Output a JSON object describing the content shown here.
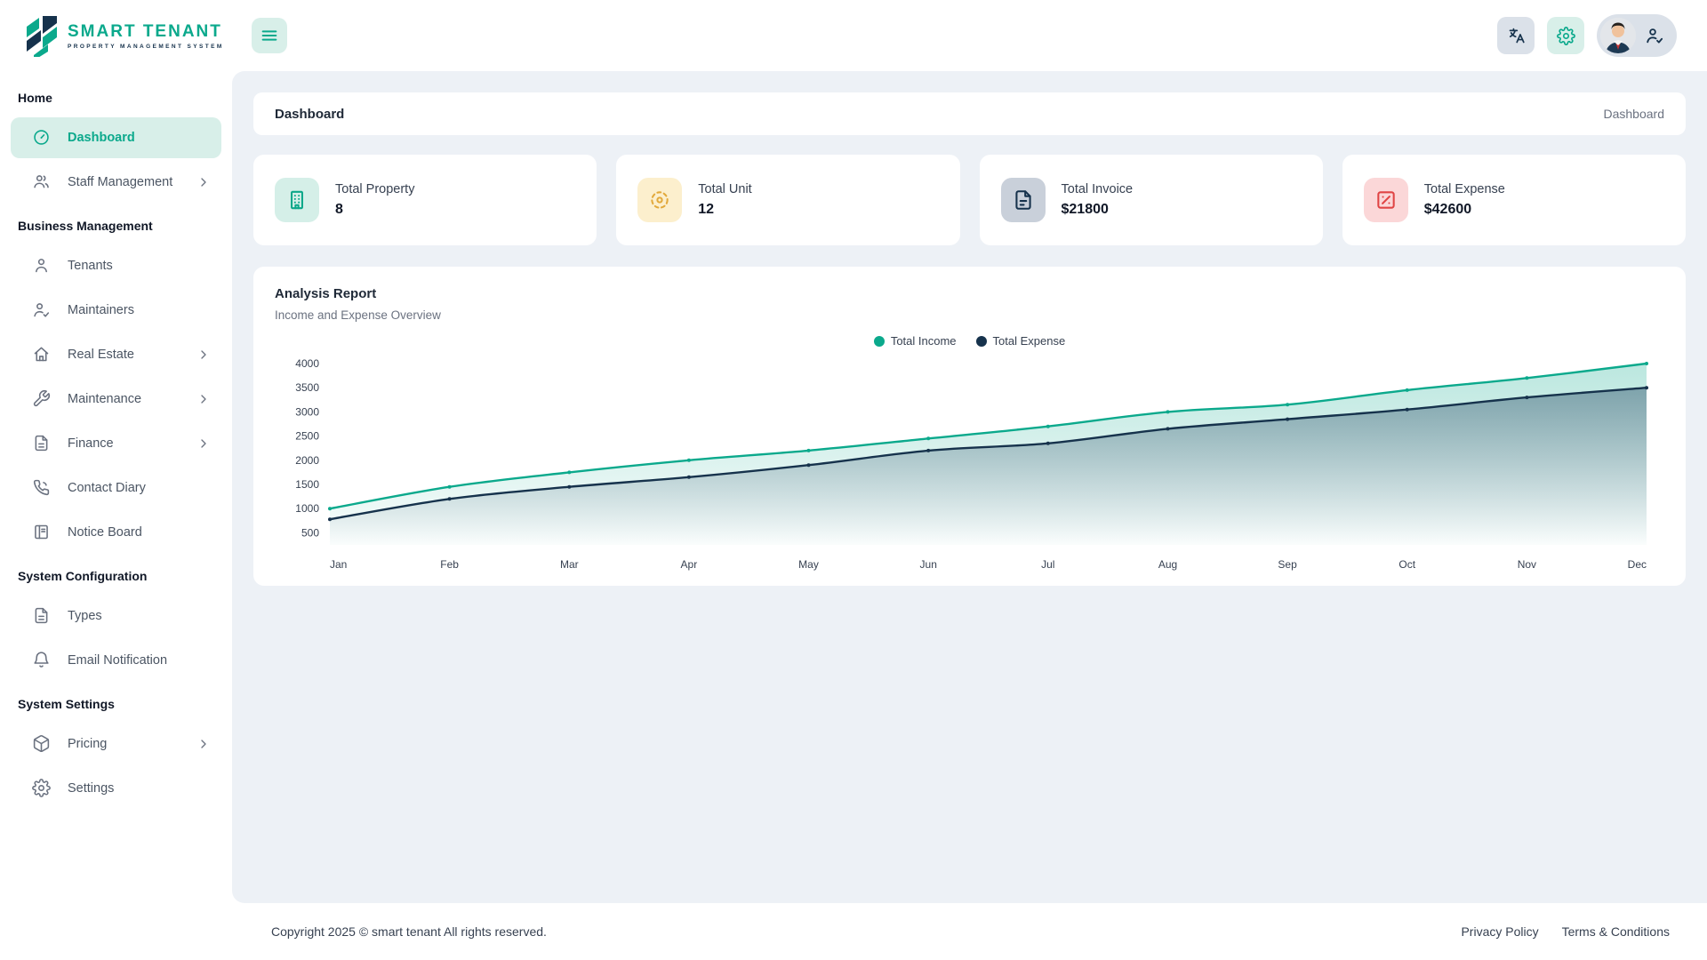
{
  "brand": {
    "name": "SMART TENANT",
    "tagline": "PROPERTY MANAGEMENT SYSTEM"
  },
  "topbar": {
    "buttons": [
      {
        "name": "translate-button",
        "icon": "languages-icon"
      },
      {
        "name": "settings-button",
        "icon": "gear-icon"
      },
      {
        "name": "profile-button",
        "icon": "user-check-icon"
      }
    ]
  },
  "page": {
    "title": "Dashboard",
    "breadcrumb": "Dashboard"
  },
  "sidebar": {
    "sections": [
      {
        "title": "Home",
        "items": [
          {
            "label": "Dashboard",
            "icon": "gauge",
            "active": true,
            "chevron": false
          },
          {
            "label": "Staff Management",
            "icon": "users",
            "active": false,
            "chevron": true
          }
        ]
      },
      {
        "title": "Business Management",
        "items": [
          {
            "label": "Tenants",
            "icon": "user",
            "active": false,
            "chevron": false
          },
          {
            "label": "Maintainers",
            "icon": "user-check",
            "active": false,
            "chevron": false
          },
          {
            "label": "Real Estate",
            "icon": "home",
            "active": false,
            "chevron": true
          },
          {
            "label": "Maintenance",
            "icon": "wrench",
            "active": false,
            "chevron": true
          },
          {
            "label": "Finance",
            "icon": "file",
            "active": false,
            "chevron": true
          },
          {
            "label": "Contact Diary",
            "icon": "phone",
            "active": false,
            "chevron": false
          },
          {
            "label": "Notice Board",
            "icon": "board",
            "active": false,
            "chevron": false
          }
        ]
      },
      {
        "title": "System Configuration",
        "items": [
          {
            "label": "Types",
            "icon": "file",
            "active": false,
            "chevron": false
          },
          {
            "label": "Email Notification",
            "icon": "bell",
            "active": false,
            "chevron": false
          }
        ]
      },
      {
        "title": "System Settings",
        "items": [
          {
            "label": "Pricing",
            "icon": "package",
            "active": false,
            "chevron": true
          },
          {
            "label": "Settings",
            "icon": "gear",
            "active": false,
            "chevron": false
          }
        ]
      }
    ]
  },
  "stats": [
    {
      "label": "Total Property",
      "value": "8",
      "icon": "building",
      "icon_bg": "#d5efe8",
      "icon_color": "#0ca789"
    },
    {
      "label": "Total Unit",
      "value": "12",
      "icon": "unit",
      "icon_bg": "#fcefcd",
      "icon_color": "#e2a93b"
    },
    {
      "label": "Total Invoice",
      "value": "$21800",
      "icon": "invoice",
      "icon_bg": "#c9d0da",
      "icon_color": "#16324c"
    },
    {
      "label": "Total Expense",
      "value": "$42600",
      "icon": "expense",
      "icon_bg": "#fbd7d8",
      "icon_color": "#e04444"
    }
  ],
  "chart_card": {
    "title": "Analysis Report",
    "subtitle": "Income and Expense Overview"
  },
  "chart_data": {
    "type": "area",
    "title": "Analysis Report",
    "subtitle": "Income and Expense Overview",
    "x": [
      "Jan",
      "Feb",
      "Mar",
      "Apr",
      "May",
      "Jun",
      "Jul",
      "Aug",
      "Sep",
      "Oct",
      "Nov",
      "Dec"
    ],
    "series": [
      {
        "name": "Total Income",
        "color": "#0ba98c",
        "values": [
          1000,
          1450,
          1750,
          2000,
          2200,
          2450,
          2700,
          3000,
          3150,
          3450,
          3700,
          4000
        ]
      },
      {
        "name": "Total Expense",
        "color": "#16324c",
        "values": [
          780,
          1200,
          1450,
          1650,
          1900,
          2200,
          2350,
          2650,
          2850,
          3050,
          3300,
          3500
        ]
      }
    ],
    "yticks": [
      4000,
      3500,
      3000,
      2500,
      2000,
      1500,
      1000,
      500
    ],
    "ylim": [
      250,
      4000
    ],
    "grid": false,
    "legend_position": "top-center"
  },
  "footer": {
    "copyright": "Copyright 2025 © smart tenant All rights reserved.",
    "links": [
      "Privacy Policy",
      "Terms & Conditions"
    ]
  }
}
